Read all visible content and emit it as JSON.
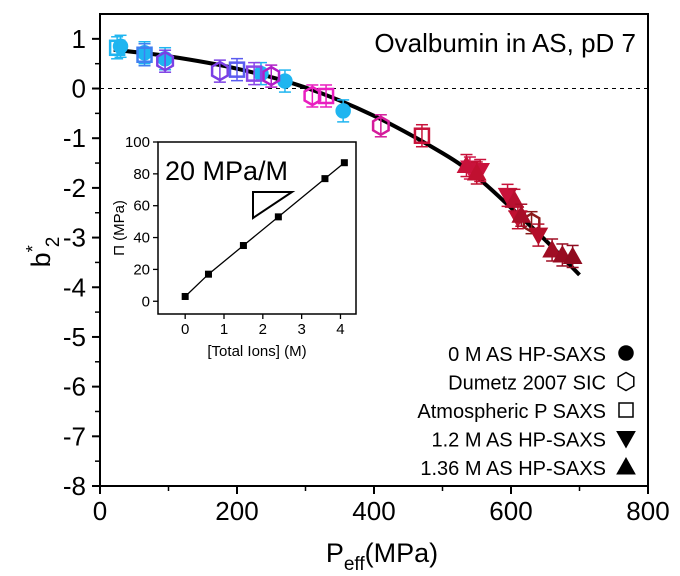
{
  "chart_data": [
    {
      "type": "scatter",
      "title": "Ovalbumin in AS, pD 7",
      "xlabel_main": "P",
      "xlabel_sub": "eff",
      "xlabel_unit": "(MPa)",
      "ylabel_main": "b",
      "ylabel_sup": "*",
      "ylabel_sub": "2",
      "xlim": [
        0,
        800
      ],
      "ylim": [
        -8,
        1.5
      ],
      "x_ticks": [
        "0",
        "200",
        "400",
        "600",
        "800"
      ],
      "y_ticks": [
        "1",
        "0",
        "-1",
        "-2",
        "-3",
        "-4",
        "-5",
        "-6",
        "-7",
        "-8"
      ],
      "x_tick_values": [
        0,
        200,
        400,
        600,
        800
      ],
      "y_tick_values": [
        1,
        0,
        -1,
        -2,
        -3,
        -4,
        -5,
        -6,
        -7,
        -8
      ],
      "reference_line_y": 0,
      "legend_position": "bottom-right",
      "fit_curve": {
        "x": [
          20,
          100,
          200,
          300,
          400,
          500,
          550,
          600,
          650,
          700
        ],
        "y": [
          0.78,
          0.65,
          0.4,
          0.02,
          -0.55,
          -1.3,
          -1.78,
          -2.4,
          -3.05,
          -3.75
        ]
      },
      "series": [
        {
          "name": "0 M AS HP-SAXS",
          "marker": "circle-filled",
          "x": [
            30,
            65,
            95,
            235,
            270,
            355
          ],
          "y": [
            0.85,
            0.72,
            0.6,
            0.3,
            0.15,
            -0.45
          ],
          "colors": [
            "#1fb5f0",
            "#1fb5f0",
            "#1fb5f0",
            "#1fb5f0",
            "#1fb5f0",
            "#1fb5f0"
          ]
        },
        {
          "name": "Dumetz 2007 SIC",
          "marker": "hexagon-open",
          "x": [
            95,
            175,
            250,
            310,
            410,
            630
          ],
          "y": [
            0.55,
            0.35,
            0.25,
            -0.15,
            -0.75,
            -2.7
          ],
          "colors": [
            "#7b3fe4",
            "#7b3fe4",
            "#b01ec8",
            "#e91ec0",
            "#d41b9b",
            "#8b1a1a"
          ]
        },
        {
          "name": "Atmospheric P SAXS",
          "marker": "square-open",
          "x": [
            25,
            65,
            200,
            225,
            330,
            470
          ],
          "y": [
            0.82,
            0.68,
            0.38,
            0.3,
            -0.15,
            -0.95
          ],
          "colors": [
            "#1fb5f0",
            "#3f7ff0",
            "#5a5cf0",
            "#8a46e8",
            "#e91ec0",
            "#c8123a"
          ]
        },
        {
          "name": "1.2 M AS HP-SAXS",
          "marker": "triangle-down-filled",
          "x": [
            540,
            555,
            595,
            610,
            640
          ],
          "y": [
            -1.6,
            -1.65,
            -2.15,
            -2.6,
            -2.95
          ],
          "colors": [
            "#d3164a",
            "#c9123c",
            "#c8123a",
            "#c01030",
            "#b40e2a"
          ]
        },
        {
          "name": "1.36 M AS HP-SAXS",
          "marker": "triangle-up-filled",
          "x": [
            535,
            550,
            605,
            615,
            660,
            675,
            690
          ],
          "y": [
            -1.55,
            -1.7,
            -2.25,
            -2.55,
            -3.25,
            -3.35,
            -3.38
          ],
          "colors": [
            "#c8123a",
            "#c01030",
            "#b81030",
            "#a80f28",
            "#a00e24",
            "#980c22",
            "#900c20"
          ]
        }
      ]
    },
    {
      "type": "line",
      "annotation": "20 MPa/M",
      "xlabel": "[Total Ions] (M)",
      "ylabel": "Π (MPa)",
      "xlim": [
        -0.7,
        4.4
      ],
      "ylim": [
        -8,
        100
      ],
      "x_ticks": [
        "0",
        "1",
        "2",
        "3",
        "4"
      ],
      "y_ticks": [
        "0",
        "20",
        "40",
        "60",
        "80",
        "100"
      ],
      "x_tick_values": [
        0,
        1,
        2,
        3,
        4
      ],
      "y_tick_values": [
        0,
        20,
        40,
        60,
        80,
        100
      ],
      "series": [
        {
          "x": [
            0,
            0.6,
            1.5,
            2.4,
            3.6,
            4.1
          ],
          "y": [
            3,
            17,
            35,
            53,
            77,
            87
          ]
        }
      ]
    }
  ]
}
